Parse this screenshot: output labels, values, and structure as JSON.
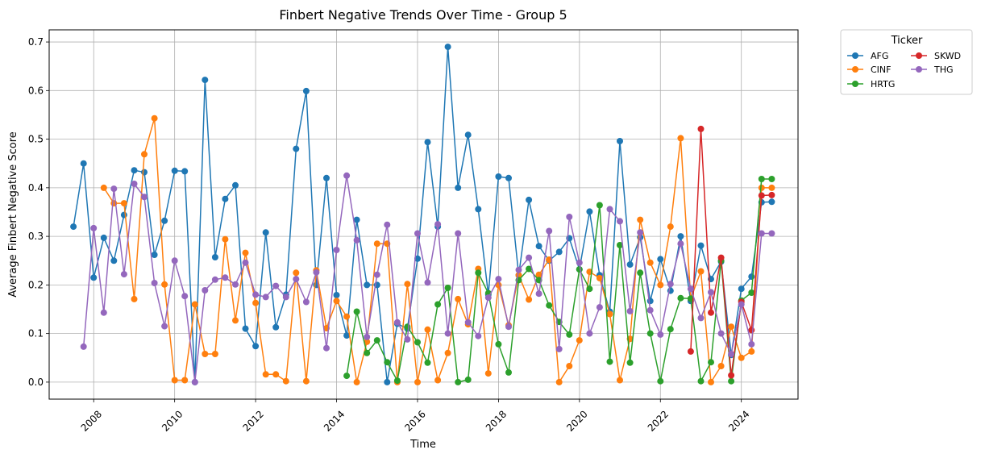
{
  "chart_data": {
    "type": "line",
    "title": "Finbert Negative Trends Over Time - Group 5",
    "xlabel": "Time",
    "ylabel": "Average Finbert Negative Score",
    "xlim": [
      2006.9,
      2025.4
    ],
    "ylim": [
      -0.035,
      0.725
    ],
    "x_ticks": [
      2008,
      2010,
      2012,
      2014,
      2016,
      2018,
      2020,
      2022,
      2024
    ],
    "y_ticks": [
      0.0,
      0.1,
      0.2,
      0.3,
      0.4,
      0.5,
      0.6,
      0.7
    ],
    "grid": true,
    "legend": {
      "title": "Ticker",
      "placement": "outside-top-right"
    },
    "series": [
      {
        "name": "AFG",
        "color": "#1f77b4",
        "x": [
          2007.5,
          2007.75,
          2008.0,
          2008.25,
          2008.5,
          2008.75,
          2009.0,
          2009.25,
          2009.5,
          2009.75,
          2010.0,
          2010.25,
          2010.5,
          2010.75,
          2011.0,
          2011.25,
          2011.5,
          2011.75,
          2012.0,
          2012.25,
          2012.5,
          2012.75,
          2013.0,
          2013.25,
          2013.5,
          2013.75,
          2014.0,
          2014.25,
          2014.5,
          2014.75,
          2015.0,
          2015.25,
          2015.5,
          2015.75,
          2016.0,
          2016.25,
          2016.5,
          2016.75,
          2017.0,
          2017.25,
          2017.5,
          2017.75,
          2018.0,
          2018.25,
          2018.5,
          2018.75,
          2019.0,
          2019.25,
          2019.5,
          2019.75,
          2020.0,
          2020.25,
          2020.5,
          2020.75,
          2021.0,
          2021.25,
          2021.5,
          2021.75,
          2022.0,
          2022.25,
          2022.5,
          2022.75,
          2023.0,
          2023.25,
          2023.5,
          2023.75,
          2024.0,
          2024.25,
          2024.5,
          2024.75
        ],
        "y": [
          0.32,
          0.45,
          0.215,
          0.297,
          0.25,
          0.344,
          0.436,
          0.432,
          0.262,
          0.332,
          0.435,
          0.434,
          0.0,
          0.622,
          0.257,
          0.377,
          0.405,
          0.11,
          0.074,
          0.308,
          0.113,
          0.18,
          0.48,
          0.599,
          0.2,
          0.42,
          0.179,
          0.096,
          0.334,
          0.2,
          0.2,
          0.0,
          0.12,
          0.11,
          0.254,
          0.494,
          0.32,
          0.69,
          0.4,
          0.509,
          0.356,
          0.18,
          0.423,
          0.42,
          0.22,
          0.375,
          0.28,
          0.25,
          0.268,
          0.296,
          0.232,
          0.351,
          0.22,
          0.145,
          0.496,
          0.242,
          0.298,
          0.167,
          0.253,
          0.188,
          0.3,
          0.167,
          0.281,
          0.212,
          0.248,
          0.056,
          0.192,
          0.217,
          0.37,
          0.371
        ]
      },
      {
        "name": "CINF",
        "color": "#ff7f0e",
        "x": [
          2008.25,
          2008.5,
          2008.75,
          2009.0,
          2009.25,
          2009.5,
          2009.75,
          2010.0,
          2010.25,
          2010.5,
          2010.75,
          2011.0,
          2011.25,
          2011.5,
          2011.75,
          2012.0,
          2012.25,
          2012.5,
          2012.75,
          2013.0,
          2013.25,
          2013.5,
          2013.75,
          2014.0,
          2014.25,
          2014.5,
          2014.75,
          2015.0,
          2015.25,
          2015.5,
          2015.75,
          2016.0,
          2016.25,
          2016.5,
          2016.75,
          2017.0,
          2017.25,
          2017.5,
          2017.75,
          2018.0,
          2018.25,
          2018.5,
          2018.75,
          2019.0,
          2019.25,
          2019.5,
          2019.75,
          2020.0,
          2020.25,
          2020.5,
          2020.75,
          2021.0,
          2021.25,
          2021.5,
          2021.75,
          2022.0,
          2022.25,
          2022.5,
          2022.75,
          2023.0,
          2023.25,
          2023.5,
          2023.75,
          2024.0,
          2024.25,
          2024.5,
          2024.75
        ],
        "y": [
          0.4,
          0.368,
          0.368,
          0.171,
          0.469,
          0.543,
          0.201,
          0.004,
          0.004,
          0.16,
          0.058,
          0.058,
          0.294,
          0.127,
          0.266,
          0.163,
          0.016,
          0.016,
          0.002,
          0.225,
          0.002,
          0.23,
          0.111,
          0.167,
          0.135,
          0.0,
          0.083,
          0.285,
          0.285,
          0.0,
          0.202,
          0.0,
          0.108,
          0.004,
          0.06,
          0.171,
          0.119,
          0.233,
          0.018,
          0.2,
          0.117,
          0.22,
          0.17,
          0.221,
          0.252,
          0.0,
          0.033,
          0.086,
          0.227,
          0.214,
          0.14,
          0.004,
          0.089,
          0.334,
          0.246,
          0.2,
          0.32,
          0.502,
          0.172,
          0.228,
          0.0,
          0.033,
          0.114,
          0.05,
          0.063,
          0.4,
          0.4
        ]
      },
      {
        "name": "HRTG",
        "color": "#2ca02c",
        "x": [
          2014.25,
          2014.5,
          2014.75,
          2015.0,
          2015.25,
          2015.5,
          2015.75,
          2016.0,
          2016.25,
          2016.5,
          2016.75,
          2017.0,
          2017.25,
          2017.5,
          2017.75,
          2018.0,
          2018.25,
          2018.5,
          2018.75,
          2019.0,
          2019.25,
          2019.5,
          2019.75,
          2020.0,
          2020.25,
          2020.5,
          2020.75,
          2021.0,
          2021.25,
          2021.5,
          2021.75,
          2022.0,
          2022.25,
          2022.5,
          2022.75,
          2023.0,
          2023.25,
          2023.5,
          2023.75,
          2024.0,
          2024.25,
          2024.5,
          2024.75
        ],
        "y": [
          0.013,
          0.145,
          0.06,
          0.086,
          0.041,
          0.003,
          0.114,
          0.082,
          0.04,
          0.16,
          0.194,
          0.0,
          0.005,
          0.225,
          0.183,
          0.078,
          0.02,
          0.21,
          0.233,
          0.21,
          0.158,
          0.124,
          0.098,
          0.232,
          0.192,
          0.364,
          0.042,
          0.282,
          0.04,
          0.225,
          0.1,
          0.002,
          0.109,
          0.173,
          0.172,
          0.002,
          0.041,
          0.25,
          0.002,
          0.168,
          0.184,
          0.418,
          0.418
        ]
      },
      {
        "name": "SKWD",
        "color": "#d62728",
        "x": [
          2022.75,
          2023.0,
          2023.25,
          2023.5,
          2023.75,
          2024.0,
          2024.25,
          2024.5,
          2024.75
        ],
        "y": [
          0.063,
          0.521,
          0.143,
          0.256,
          0.014,
          0.165,
          0.107,
          0.384,
          0.385
        ]
      },
      {
        "name": "THG",
        "color": "#9467bd",
        "x": [
          2007.75,
          2008.0,
          2008.25,
          2008.5,
          2008.75,
          2009.0,
          2009.25,
          2009.5,
          2009.75,
          2010.0,
          2010.25,
          2010.5,
          2010.75,
          2011.0,
          2011.25,
          2011.5,
          2011.75,
          2012.0,
          2012.25,
          2012.5,
          2012.75,
          2013.0,
          2013.25,
          2013.5,
          2013.75,
          2014.0,
          2014.25,
          2014.5,
          2014.75,
          2015.0,
          2015.25,
          2015.5,
          2015.75,
          2016.0,
          2016.25,
          2016.5,
          2016.75,
          2017.0,
          2017.25,
          2017.5,
          2017.75,
          2018.0,
          2018.25,
          2018.5,
          2018.75,
          2019.0,
          2019.25,
          2019.5,
          2019.75,
          2020.0,
          2020.25,
          2020.5,
          2020.75,
          2021.0,
          2021.25,
          2021.5,
          2021.75,
          2022.0,
          2022.25,
          2022.5,
          2022.75,
          2023.0,
          2023.25,
          2023.5,
          2023.75,
          2024.0,
          2024.25,
          2024.5,
          2024.75
        ],
        "y": [
          0.073,
          0.317,
          0.143,
          0.398,
          0.222,
          0.408,
          0.381,
          0.204,
          0.115,
          0.25,
          0.177,
          0.0,
          0.189,
          0.211,
          0.215,
          0.201,
          0.246,
          0.18,
          0.175,
          0.198,
          0.175,
          0.212,
          0.165,
          0.226,
          0.07,
          0.272,
          0.425,
          0.292,
          0.093,
          0.221,
          0.324,
          0.123,
          0.088,
          0.306,
          0.205,
          0.325,
          0.1,
          0.306,
          0.123,
          0.095,
          0.174,
          0.212,
          0.114,
          0.231,
          0.256,
          0.182,
          0.311,
          0.068,
          0.34,
          0.246,
          0.1,
          0.154,
          0.356,
          0.331,
          0.146,
          0.308,
          0.148,
          0.098,
          0.202,
          0.285,
          0.192,
          0.132,
          0.185,
          0.1,
          0.058,
          0.16,
          0.078,
          0.306,
          0.306
        ]
      }
    ]
  }
}
